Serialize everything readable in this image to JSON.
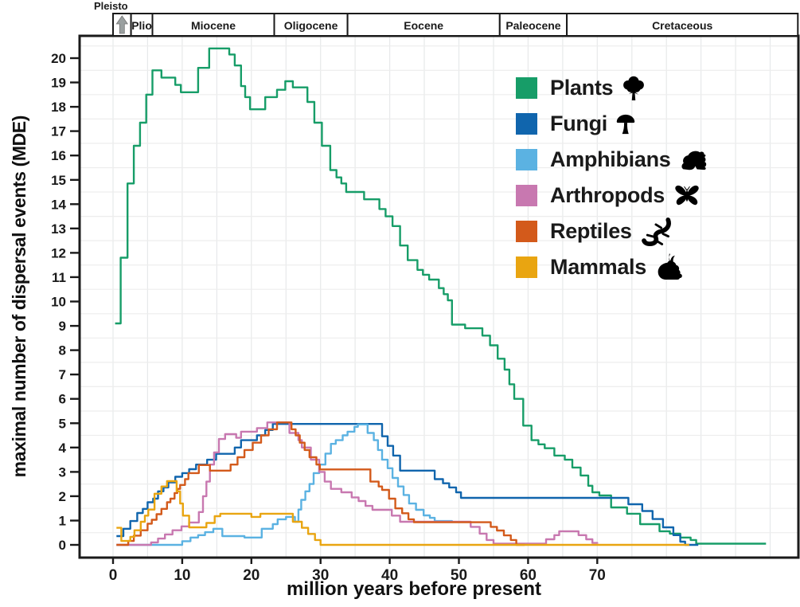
{
  "figure": {
    "y_axis_label": "maximal number of dispersal events (MDE)",
    "x_axis_label": "million years before present",
    "pleisto_callout": "Pleisto"
  },
  "epochs": [
    {
      "label": "",
      "start": 0,
      "end": 2.6,
      "marker": "up-arrow"
    },
    {
      "label": "Plio",
      "start": 2.6,
      "end": 5.7
    },
    {
      "label": "Miocene",
      "start": 5.7,
      "end": 23.3
    },
    {
      "label": "Oligocene",
      "start": 23.3,
      "end": 33.9
    },
    {
      "label": "Eocene",
      "start": 33.9,
      "end": 55.9
    },
    {
      "label": "Paleocene",
      "start": 55.9,
      "end": 65.6
    },
    {
      "label": "Cretaceous",
      "start": 65.6,
      "end": 99
    }
  ],
  "legend": {
    "items": [
      {
        "label": "Plants",
        "color": "#179D68",
        "icon": "tree-icon"
      },
      {
        "label": "Fungi",
        "color": "#1065AD",
        "icon": "mushroom-icon"
      },
      {
        "label": "Amphibians",
        "color": "#5BB2E2",
        "icon": "frog-icon"
      },
      {
        "label": "Arthropods",
        "color": "#C878B0",
        "icon": "butterfly-icon"
      },
      {
        "label": "Reptiles",
        "color": "#D35A1B",
        "icon": "lizard-icon"
      },
      {
        "label": "Mammals",
        "color": "#E9A511",
        "icon": "rabbit-icon"
      }
    ]
  },
  "chart_data": {
    "type": "line",
    "step_mode": "after",
    "title": "",
    "xlabel": "million years before present",
    "ylabel": "maximal number of dispersal events (MDE)",
    "x_ticks": [
      0,
      10,
      20,
      30,
      40,
      50,
      60,
      70
    ],
    "x_max": 99,
    "y_ticks": [
      0,
      1,
      2,
      3,
      4,
      5,
      6,
      7,
      8,
      9,
      10,
      11,
      12,
      13,
      14,
      15,
      16,
      17,
      18,
      19,
      20
    ],
    "y_max": 20.9,
    "grid": {
      "vertical_every_ma": 5,
      "horizontal_at_half_units": true
    },
    "series": [
      {
        "name": "Plants",
        "color": "#179D68",
        "steps": [
          [
            0.3,
            9.1
          ],
          [
            1.1,
            11.8
          ],
          [
            2.1,
            14.85
          ],
          [
            3.0,
            16.4
          ],
          [
            3.9,
            17.35
          ],
          [
            4.8,
            18.5
          ],
          [
            5.7,
            19.5
          ],
          [
            7.0,
            19.2
          ],
          [
            9.0,
            18.9
          ],
          [
            9.8,
            18.6
          ],
          [
            12.3,
            19.6
          ],
          [
            13.9,
            20.4
          ],
          [
            16.8,
            20.15
          ],
          [
            17.6,
            19.7
          ],
          [
            18.5,
            18.85
          ],
          [
            19.1,
            18.4
          ],
          [
            19.8,
            17.9
          ],
          [
            22.0,
            18.4
          ],
          [
            23.7,
            18.7
          ],
          [
            24.9,
            19.05
          ],
          [
            26.0,
            18.8
          ],
          [
            28.1,
            18.2
          ],
          [
            29.1,
            17.35
          ],
          [
            30.2,
            16.4
          ],
          [
            31.4,
            15.4
          ],
          [
            32.3,
            15.1
          ],
          [
            33.0,
            14.85
          ],
          [
            33.7,
            14.5
          ],
          [
            36.3,
            14.2
          ],
          [
            38.5,
            13.8
          ],
          [
            39.4,
            13.5
          ],
          [
            40.4,
            13.1
          ],
          [
            41.5,
            12.3
          ],
          [
            42.6,
            11.7
          ],
          [
            44.0,
            11.3
          ],
          [
            44.8,
            11.1
          ],
          [
            45.7,
            10.9
          ],
          [
            47.1,
            10.55
          ],
          [
            47.8,
            10.3
          ],
          [
            48.4,
            10.05
          ],
          [
            49.0,
            9.05
          ],
          [
            50.9,
            8.9
          ],
          [
            53.4,
            8.6
          ],
          [
            54.5,
            8.2
          ],
          [
            55.6,
            7.65
          ],
          [
            56.6,
            7.2
          ],
          [
            57.3,
            6.6
          ],
          [
            58.0,
            6.0
          ],
          [
            59.3,
            4.9
          ],
          [
            60.5,
            4.3
          ],
          [
            61.5,
            4.13
          ],
          [
            62.4,
            3.97
          ],
          [
            63.8,
            3.67
          ],
          [
            65.3,
            3.5
          ],
          [
            66.4,
            3.18
          ],
          [
            67.6,
            2.85
          ],
          [
            68.7,
            2.43
          ],
          [
            69.3,
            2.16
          ],
          [
            70.3,
            2.03
          ],
          [
            72.0,
            1.54
          ],
          [
            74.3,
            1.28
          ],
          [
            76.2,
            0.85
          ],
          [
            79.0,
            0.56
          ],
          [
            80.5,
            0.46
          ],
          [
            82.0,
            0.3
          ],
          [
            83.5,
            0.2
          ],
          [
            84.3,
            0.05
          ],
          [
            94.4,
            0.05
          ]
        ]
      },
      {
        "name": "Fungi",
        "color": "#1065AD",
        "steps": [
          [
            0.5,
            0.36
          ],
          [
            1.5,
            0.66
          ],
          [
            2.5,
            0.98
          ],
          [
            3.5,
            1.31
          ],
          [
            4.3,
            1.48
          ],
          [
            5.0,
            1.75
          ],
          [
            5.8,
            1.9
          ],
          [
            6.5,
            2.2
          ],
          [
            7.3,
            2.36
          ],
          [
            8.0,
            2.57
          ],
          [
            9.0,
            2.8
          ],
          [
            10.0,
            2.95
          ],
          [
            11.0,
            3.11
          ],
          [
            12.0,
            3.3
          ],
          [
            13.6,
            3.5
          ],
          [
            14.9,
            3.74
          ],
          [
            17.6,
            4.0
          ],
          [
            18.5,
            4.3
          ],
          [
            20.8,
            4.5
          ],
          [
            22.0,
            4.72
          ],
          [
            23.1,
            4.97
          ],
          [
            38.9,
            4.46
          ],
          [
            39.7,
            4.07
          ],
          [
            40.5,
            3.67
          ],
          [
            41.5,
            3.05
          ],
          [
            46.5,
            2.7
          ],
          [
            47.7,
            2.53
          ],
          [
            48.6,
            2.36
          ],
          [
            49.6,
            2.16
          ],
          [
            50.3,
            1.93
          ],
          [
            74.5,
            1.67
          ],
          [
            76.5,
            1.39
          ],
          [
            78.0,
            1.06
          ],
          [
            79.5,
            0.72
          ],
          [
            81.0,
            0.4
          ],
          [
            82.0,
            0.13
          ],
          [
            82.7,
            0.0
          ],
          [
            84.6,
            0.0
          ]
        ]
      },
      {
        "name": "Amphibians",
        "color": "#5BB2E2",
        "steps": [
          [
            0.5,
            0.0
          ],
          [
            10.0,
            0.15
          ],
          [
            11.2,
            0.3
          ],
          [
            12.3,
            0.4
          ],
          [
            13.3,
            0.52
          ],
          [
            14.5,
            0.66
          ],
          [
            15.8,
            0.36
          ],
          [
            19.0,
            0.3
          ],
          [
            21.5,
            0.66
          ],
          [
            23.1,
            0.85
          ],
          [
            23.8,
            1.05
          ],
          [
            25.0,
            1.15
          ],
          [
            26.3,
            0.95
          ],
          [
            26.8,
            1.45
          ],
          [
            27.2,
            1.85
          ],
          [
            27.8,
            2.2
          ],
          [
            28.4,
            2.5
          ],
          [
            29.0,
            2.95
          ],
          [
            29.8,
            3.3
          ],
          [
            30.7,
            3.75
          ],
          [
            31.5,
            4.15
          ],
          [
            32.2,
            4.3
          ],
          [
            33.2,
            4.5
          ],
          [
            33.9,
            4.65
          ],
          [
            34.9,
            4.85
          ],
          [
            35.4,
            4.95
          ],
          [
            36.8,
            4.6
          ],
          [
            37.7,
            4.3
          ],
          [
            38.3,
            3.9
          ],
          [
            38.9,
            3.5
          ],
          [
            39.7,
            3.15
          ],
          [
            40.4,
            2.75
          ],
          [
            41.2,
            2.4
          ],
          [
            42.0,
            2.05
          ],
          [
            42.8,
            1.7
          ],
          [
            43.8,
            1.44
          ],
          [
            44.9,
            1.21
          ],
          [
            45.8,
            1.11
          ],
          [
            46.5,
            0.98
          ],
          [
            49.0,
            0.95
          ]
        ]
      },
      {
        "name": "Arthropods",
        "color": "#C878B0",
        "steps": [
          [
            0.5,
            0.0
          ],
          [
            5.5,
            0.1
          ],
          [
            6.5,
            0.26
          ],
          [
            7.5,
            0.43
          ],
          [
            8.6,
            0.6
          ],
          [
            9.9,
            0.76
          ],
          [
            11.0,
            0.92
          ],
          [
            12.4,
            1.35
          ],
          [
            13.0,
            2.0
          ],
          [
            13.5,
            2.6
          ],
          [
            14.0,
            3.3
          ],
          [
            14.6,
            3.8
          ],
          [
            15.3,
            4.35
          ],
          [
            16.2,
            4.55
          ],
          [
            17.8,
            4.4
          ],
          [
            18.5,
            4.65
          ],
          [
            20.8,
            4.8
          ],
          [
            22.3,
            5.03
          ],
          [
            25.5,
            4.6
          ],
          [
            26.8,
            4.3
          ],
          [
            27.3,
            4.0
          ],
          [
            28.6,
            3.5
          ],
          [
            29.8,
            3.0
          ],
          [
            30.6,
            2.6
          ],
          [
            31.5,
            2.3
          ],
          [
            33.0,
            2.16
          ],
          [
            34.5,
            1.95
          ],
          [
            35.5,
            1.8
          ],
          [
            36.5,
            1.6
          ],
          [
            37.5,
            1.44
          ],
          [
            40.3,
            1.2
          ],
          [
            41.5,
            0.95
          ],
          [
            51.7,
            0.74
          ],
          [
            53.0,
            0.46
          ],
          [
            54.0,
            0.2
          ],
          [
            55.0,
            0.05
          ],
          [
            62.6,
            0.23
          ],
          [
            63.8,
            0.4
          ],
          [
            64.5,
            0.56
          ],
          [
            67.3,
            0.4
          ],
          [
            68.4,
            0.23
          ],
          [
            69.3,
            0.08
          ],
          [
            70.0,
            0.05
          ]
        ]
      },
      {
        "name": "Reptiles",
        "color": "#D35A1B",
        "steps": [
          [
            0.5,
            0.0
          ],
          [
            2.2,
            0.16
          ],
          [
            3.0,
            0.38
          ],
          [
            4.0,
            0.6
          ],
          [
            5.0,
            0.87
          ],
          [
            5.6,
            1.03
          ],
          [
            6.3,
            1.26
          ],
          [
            7.0,
            1.48
          ],
          [
            7.8,
            1.75
          ],
          [
            8.3,
            1.9
          ],
          [
            8.9,
            2.13
          ],
          [
            9.3,
            2.3
          ],
          [
            9.7,
            2.46
          ],
          [
            10.4,
            2.7
          ],
          [
            10.9,
            2.95
          ],
          [
            12.4,
            3.28
          ],
          [
            14.0,
            3.05
          ],
          [
            17.0,
            3.3
          ],
          [
            18.0,
            3.6
          ],
          [
            19.0,
            3.9
          ],
          [
            20.2,
            4.2
          ],
          [
            21.4,
            4.5
          ],
          [
            22.5,
            4.75
          ],
          [
            23.7,
            5.03
          ],
          [
            25.8,
            4.75
          ],
          [
            26.4,
            4.5
          ],
          [
            27.0,
            4.2
          ],
          [
            27.7,
            3.9
          ],
          [
            28.4,
            3.6
          ],
          [
            29.4,
            3.3
          ],
          [
            29.9,
            3.1
          ],
          [
            37.2,
            2.6
          ],
          [
            38.4,
            2.4
          ],
          [
            38.9,
            2.26
          ],
          [
            39.9,
            1.9
          ],
          [
            40.8,
            1.5
          ],
          [
            41.8,
            1.3
          ],
          [
            42.7,
            1.05
          ],
          [
            43.5,
            0.93
          ],
          [
            54.6,
            0.74
          ],
          [
            55.5,
            0.59
          ],
          [
            56.5,
            0.39
          ],
          [
            57.5,
            0.2
          ],
          [
            58.3,
            0.0
          ],
          [
            59.5,
            0.0
          ]
        ]
      },
      {
        "name": "Mammals",
        "color": "#E9A511",
        "steps": [
          [
            0.5,
            0.7
          ],
          [
            1.2,
            0.16
          ],
          [
            2.5,
            0.33
          ],
          [
            3.1,
            0.6
          ],
          [
            4.0,
            0.95
          ],
          [
            4.6,
            1.2
          ],
          [
            5.1,
            1.45
          ],
          [
            6.0,
            2.1
          ],
          [
            7.0,
            2.4
          ],
          [
            7.8,
            2.62
          ],
          [
            9.2,
            2.2
          ],
          [
            9.7,
            1.7
          ],
          [
            10.1,
            1.2
          ],
          [
            11.0,
            0.72
          ],
          [
            13.5,
            0.9
          ],
          [
            14.7,
            1.18
          ],
          [
            15.5,
            1.28
          ],
          [
            20.0,
            1.15
          ],
          [
            21.3,
            1.28
          ],
          [
            26.0,
            0.95
          ],
          [
            27.3,
            0.7
          ],
          [
            28.2,
            0.45
          ],
          [
            29.2,
            0.2
          ],
          [
            30.0,
            0.0
          ],
          [
            83.3,
            0.0
          ]
        ]
      }
    ]
  }
}
